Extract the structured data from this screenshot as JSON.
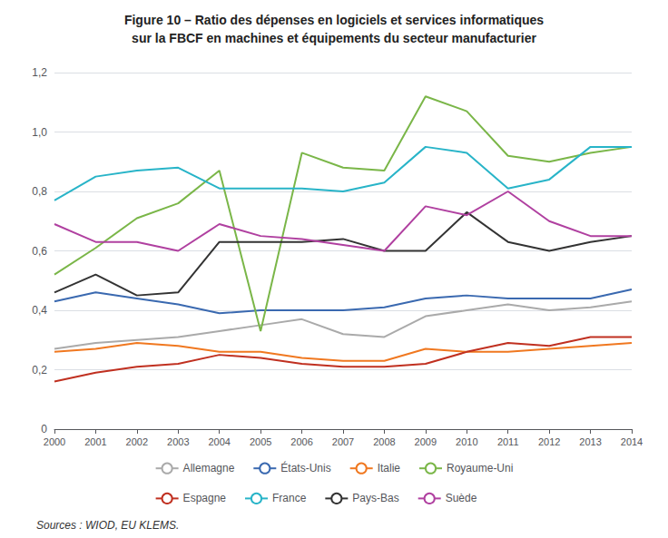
{
  "chart_data": {
    "type": "line",
    "title": "Figure 10 – Ratio des dépenses en logiciels et services informatiques",
    "subtitle": "sur la FBCF en machines et équipements du secteur manufacturier",
    "x": [
      2000,
      2001,
      2002,
      2003,
      2004,
      2005,
      2006,
      2007,
      2008,
      2009,
      2010,
      2011,
      2012,
      2013,
      2014
    ],
    "series": [
      {
        "name": "Allemagne",
        "color": "#aaaaaa",
        "values": [
          0.27,
          0.29,
          0.3,
          0.31,
          0.33,
          0.35,
          0.37,
          0.32,
          0.31,
          0.38,
          0.4,
          0.42,
          0.4,
          0.41,
          0.43
        ]
      },
      {
        "name": "États-Unis",
        "color": "#3a69b0",
        "values": [
          0.43,
          0.46,
          0.44,
          0.42,
          0.39,
          0.4,
          0.4,
          0.4,
          0.41,
          0.44,
          0.45,
          0.44,
          0.44,
          0.44,
          0.47
        ]
      },
      {
        "name": "Italie",
        "color": "#f07820",
        "values": [
          0.26,
          0.27,
          0.29,
          0.28,
          0.26,
          0.26,
          0.24,
          0.23,
          0.23,
          0.27,
          0.26,
          0.26,
          0.27,
          0.28,
          0.29
        ]
      },
      {
        "name": "Royaume-Uni",
        "color": "#7ab648",
        "values": [
          0.52,
          0.61,
          0.71,
          0.76,
          0.87,
          0.33,
          0.93,
          0.88,
          0.87,
          1.12,
          1.07,
          0.92,
          0.9,
          0.93,
          0.95
        ]
      },
      {
        "name": "Espagne",
        "color": "#c03020",
        "values": [
          0.16,
          0.19,
          0.21,
          0.22,
          0.25,
          0.24,
          0.22,
          0.21,
          0.21,
          0.22,
          0.26,
          0.29,
          0.28,
          0.31,
          0.31
        ]
      },
      {
        "name": "France",
        "color": "#28b4c8",
        "values": [
          0.77,
          0.85,
          0.87,
          0.88,
          0.81,
          0.81,
          0.81,
          0.8,
          0.83,
          0.95,
          0.93,
          0.81,
          0.84,
          0.95,
          0.95
        ]
      },
      {
        "name": "Pays-Bas",
        "color": "#333333",
        "values": [
          0.46,
          0.52,
          0.45,
          0.46,
          0.63,
          0.63,
          0.63,
          0.64,
          0.6,
          0.6,
          0.73,
          0.63,
          0.6,
          0.63,
          0.65
        ]
      },
      {
        "name": "Suède",
        "color": "#b040a0",
        "values": [
          0.69,
          0.63,
          0.63,
          0.6,
          0.69,
          0.65,
          0.64,
          0.62,
          0.6,
          0.75,
          0.72,
          0.8,
          0.7,
          0.65,
          0.65
        ]
      }
    ],
    "xlim": [
      2000,
      2014
    ],
    "xticks": [
      2000,
      2001,
      2002,
      2003,
      2004,
      2005,
      2006,
      2007,
      2008,
      2009,
      2010,
      2011,
      2012,
      2013,
      2014
    ],
    "ylim": [
      0,
      1.2
    ],
    "yticks": [
      0,
      {
        "value": 0.2,
        "label": "0,2"
      },
      {
        "value": 0.4,
        "label": "0,4"
      },
      {
        "value": 0.6,
        "label": "0,6"
      },
      {
        "value": 0.8,
        "label": "0,8"
      },
      {
        "value": 1.0,
        "label": "1,0"
      },
      {
        "value": 1.2,
        "label": "1,2"
      }
    ],
    "grid": true,
    "legend": "bottom",
    "annotations": [
      "Sources : WIOD, EU KLEMS."
    ]
  }
}
